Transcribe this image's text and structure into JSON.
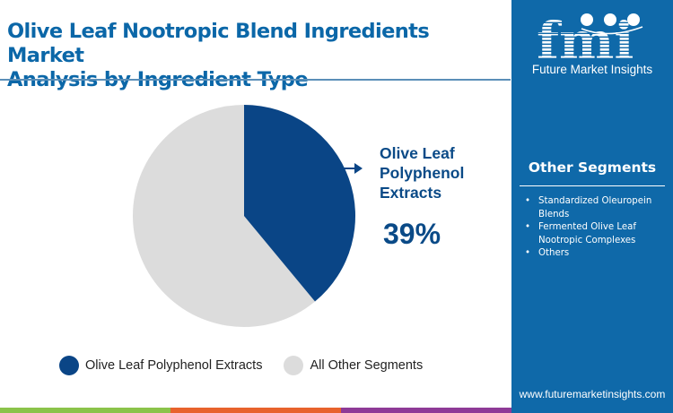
{
  "header": {
    "title_line1": "Olive Leaf Nootropic Blend Ingredients Market",
    "title_line2": "Analysis by Ingredient Type"
  },
  "brand": {
    "logo_text": "fmi",
    "name": "Future Market Insights",
    "website": "www.futuremarketinsights.com"
  },
  "sidebar": {
    "title": "Other Segments",
    "items": [
      {
        "label": "Standardized Oleuropein Blends"
      },
      {
        "label": "Fermented Olive Leaf Nootropic Complexes"
      },
      {
        "label": "Others"
      }
    ]
  },
  "callout": {
    "label": "Olive Leaf Polyphenol Extracts",
    "value": "39%"
  },
  "legend": [
    {
      "label": "Olive Leaf Polyphenol Extracts",
      "color": "#0a4586"
    },
    {
      "label": "All Other Segments",
      "color": "#dcdcdc"
    }
  ],
  "colors": {
    "accent": "#0a4586",
    "other": "#dcdcdc",
    "panel": "#0f69a9",
    "bar_green": "#8bc34a",
    "bar_orange": "#e8622c",
    "bar_purple": "#8e3a97"
  },
  "chart_data": {
    "type": "pie",
    "title": "Olive Leaf Nootropic Blend Ingredients Market Analysis by Ingredient Type",
    "categories": [
      "Olive Leaf Polyphenol Extracts",
      "All Other Segments"
    ],
    "values": [
      39,
      61
    ],
    "unit": "%",
    "colors": [
      "#0a4586",
      "#dcdcdc"
    ],
    "start_angle": "12 o'clock, clockwise",
    "legend_position": "bottom",
    "annotations": [
      {
        "target": "Olive Leaf Polyphenol Extracts",
        "text": "39%"
      }
    ]
  }
}
